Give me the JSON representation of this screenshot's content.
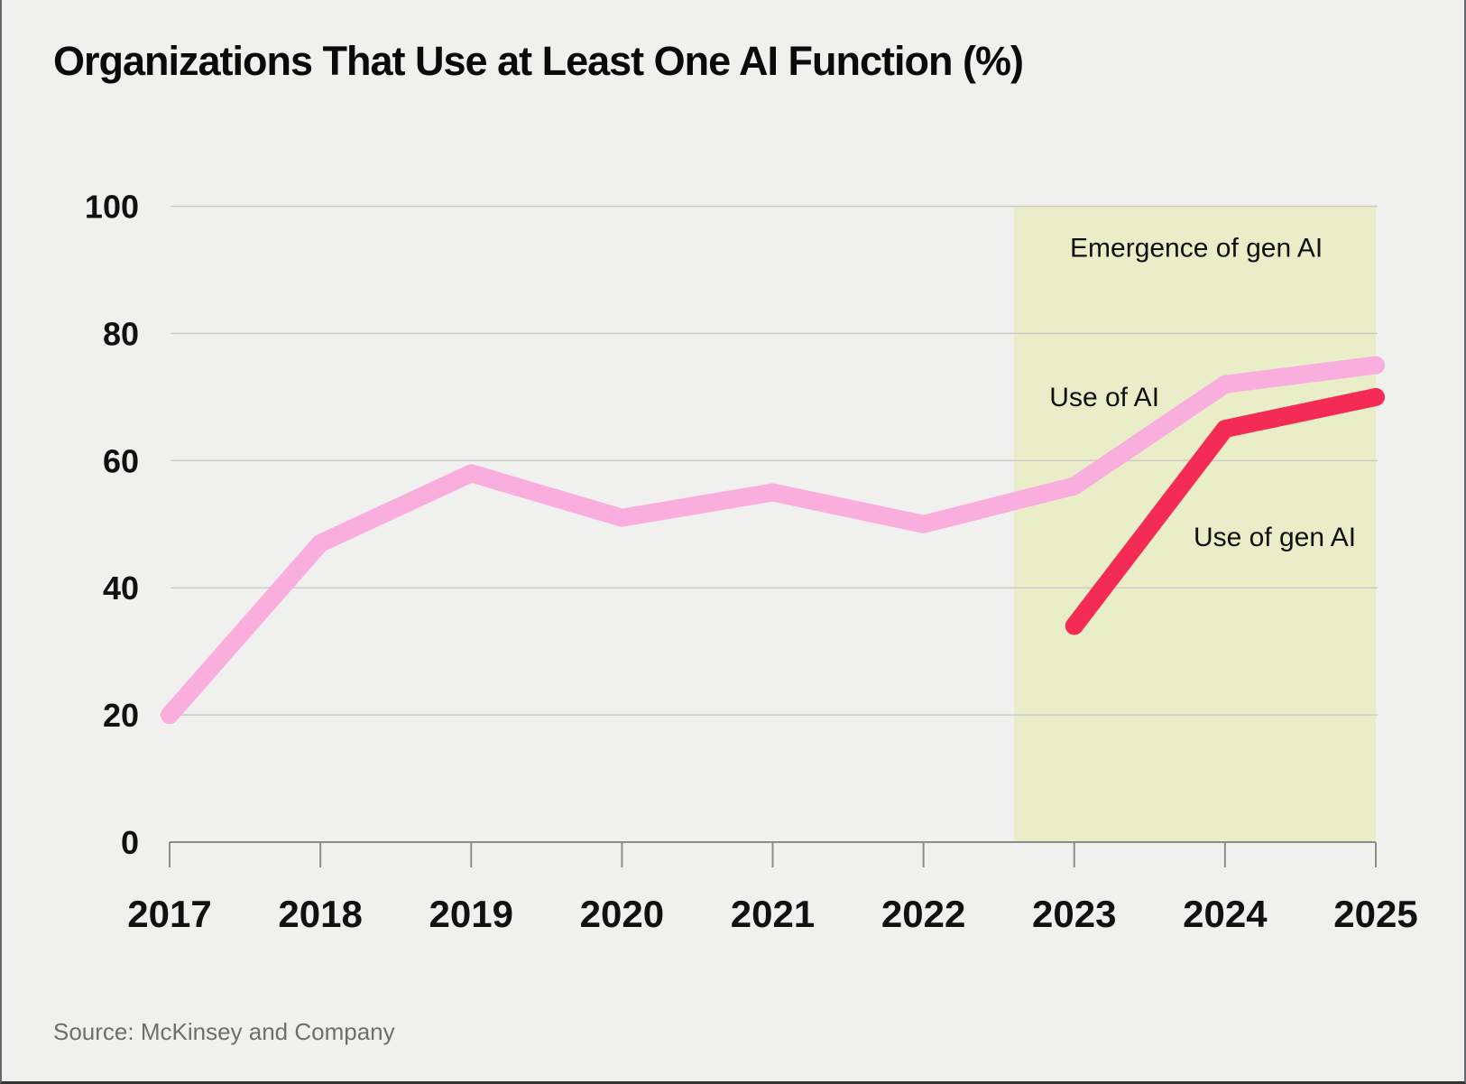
{
  "title": "Organizations That Use at Least One AI Function (%)",
  "source": "Source: McKinsey and Company",
  "colors": {
    "background": "#f0f0ee",
    "use_of_ai": "#f9aede",
    "use_of_gen_ai": "#f42c55",
    "gen_ai_region_fill": "#e9edc8",
    "gridline": "#cbcbc9",
    "axis": "#8c8c8c",
    "label_text": "#111111",
    "source_text": "#6e6e6e"
  },
  "chart_data": {
    "type": "line",
    "title": "Organizations That Use at Least One AI Function (%)",
    "xlabel": "",
    "ylabel": "",
    "ylim": [
      0,
      100
    ],
    "grid": true,
    "x_ticks": [
      2017,
      2018,
      2019,
      2020,
      2021,
      2022,
      2023,
      2024,
      2025
    ],
    "y_ticks": [
      0,
      20,
      40,
      60,
      80,
      100
    ],
    "series": [
      {
        "name": "Use of AI",
        "color_key": "use_of_ai",
        "x": [
          2017,
          2018,
          2019,
          2020,
          2021,
          2022,
          2023,
          2024,
          2025
        ],
        "values": [
          20,
          47,
          58,
          51,
          55,
          50,
          56,
          72,
          75
        ]
      },
      {
        "name": "Use of gen AI",
        "color_key": "use_of_gen_ai",
        "x": [
          2023,
          2024,
          2025
        ],
        "values": [
          34,
          65,
          70
        ]
      }
    ],
    "region": {
      "label": "Emergence of gen AI",
      "x_start": 2022.6,
      "x_end": 2025,
      "y_bottom": 0,
      "y_top": 100,
      "fill_key": "gen_ai_region_fill",
      "label_anchor": {
        "x": 2023.81,
        "y": 93.5
      }
    },
    "series_labels": [
      {
        "text": "Use of AI",
        "x": 2023.2,
        "y": 70
      },
      {
        "text": "Use of gen AI",
        "x": 2024.33,
        "y": 48
      }
    ]
  }
}
